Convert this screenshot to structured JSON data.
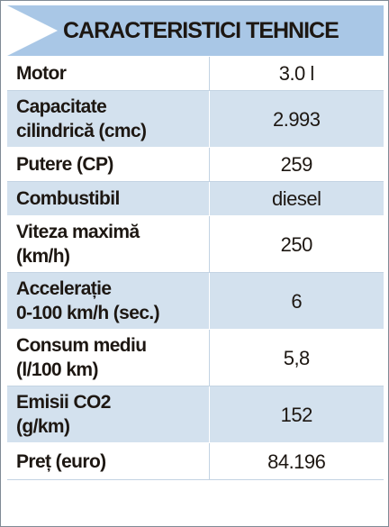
{
  "title": "CARACTERISTICI TEHNICE",
  "colors": {
    "header_bg": "#a9c7e6",
    "arrow": "#ffffff",
    "row_shaded": "#d3e1ee",
    "row_plain": "#ffffff",
    "text": "#1d1712"
  },
  "rows": [
    {
      "label": "Motor",
      "value": "3.0 l"
    },
    {
      "label": "Capacitate\ncilindrică (cmc)",
      "value": "2.993"
    },
    {
      "label": "Putere (CP)",
      "value": "259"
    },
    {
      "label": "Combustibil",
      "value": "diesel"
    },
    {
      "label": "Viteza maximă\n(km/h)",
      "value": "250"
    },
    {
      "label": "Accelerație\n0-100 km/h (sec.)",
      "value": "6"
    },
    {
      "label": "Consum mediu\n(l/100 km)",
      "value": "5,8"
    },
    {
      "label": "Emisii CO2\n(g/km)",
      "value": "152"
    },
    {
      "label": "Preț (euro)",
      "value": "84.196"
    }
  ]
}
